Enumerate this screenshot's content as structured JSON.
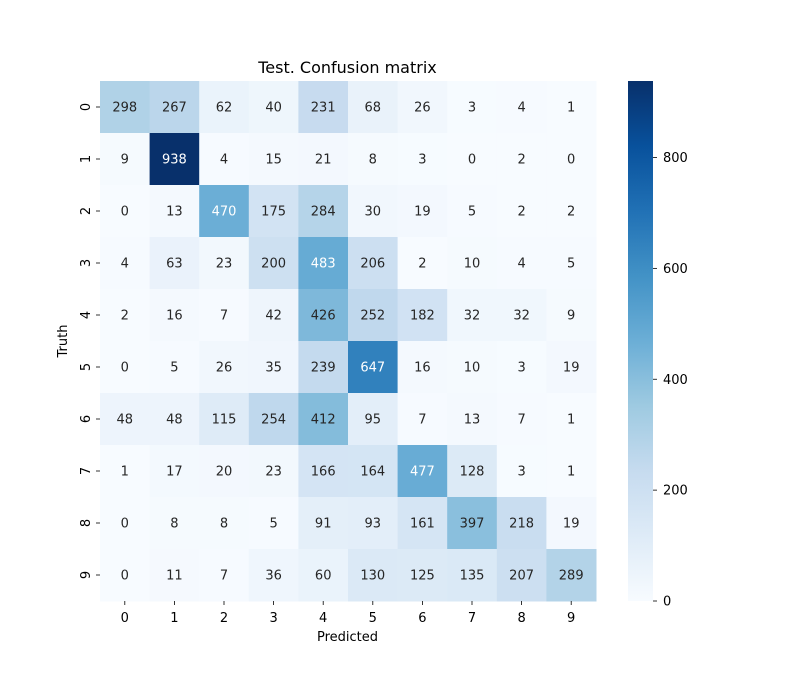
{
  "chart_data": {
    "type": "heatmap",
    "title": "Test. Confusion matrix",
    "xlabel": "Predicted",
    "ylabel": "Truth",
    "x_categories": [
      "0",
      "1",
      "2",
      "3",
      "4",
      "5",
      "6",
      "7",
      "8",
      "9"
    ],
    "y_categories": [
      "0",
      "1",
      "2",
      "3",
      "4",
      "5",
      "6",
      "7",
      "8",
      "9"
    ],
    "values": [
      [
        298,
        267,
        62,
        40,
        231,
        68,
        26,
        3,
        4,
        1
      ],
      [
        9,
        938,
        4,
        15,
        21,
        8,
        3,
        0,
        2,
        0
      ],
      [
        0,
        13,
        470,
        175,
        284,
        30,
        19,
        5,
        2,
        2
      ],
      [
        4,
        63,
        23,
        200,
        483,
        206,
        2,
        10,
        4,
        5
      ],
      [
        2,
        16,
        7,
        42,
        426,
        252,
        182,
        32,
        32,
        9
      ],
      [
        0,
        5,
        26,
        35,
        239,
        647,
        16,
        10,
        3,
        19
      ],
      [
        48,
        48,
        115,
        254,
        412,
        95,
        7,
        13,
        7,
        1
      ],
      [
        1,
        17,
        20,
        23,
        166,
        164,
        477,
        128,
        3,
        1
      ],
      [
        0,
        8,
        8,
        5,
        91,
        93,
        161,
        397,
        218,
        19
      ],
      [
        0,
        11,
        7,
        36,
        60,
        130,
        125,
        135,
        207,
        289
      ]
    ],
    "colormap": "Blues",
    "color_range": [
      0,
      938
    ],
    "colorbar_ticks": [
      0,
      200,
      400,
      600,
      800
    ],
    "colorbar_ticks_text": [
      "0",
      "200",
      "400",
      "600",
      "800"
    ],
    "legend": "right"
  }
}
